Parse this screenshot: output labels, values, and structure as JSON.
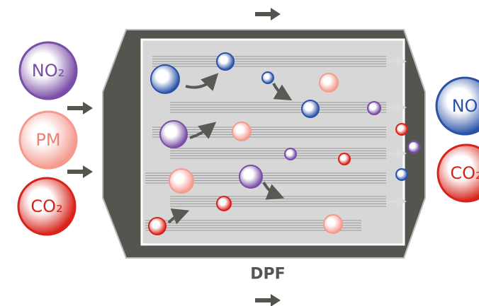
{
  "inputs": [
    {
      "label": "NO₂"
    },
    {
      "label": "PM"
    },
    {
      "label": "CO₂"
    }
  ],
  "outputs": [
    {
      "label": "NO"
    },
    {
      "label": "CO₂"
    }
  ],
  "filter": {
    "label": "DPF"
  }
}
